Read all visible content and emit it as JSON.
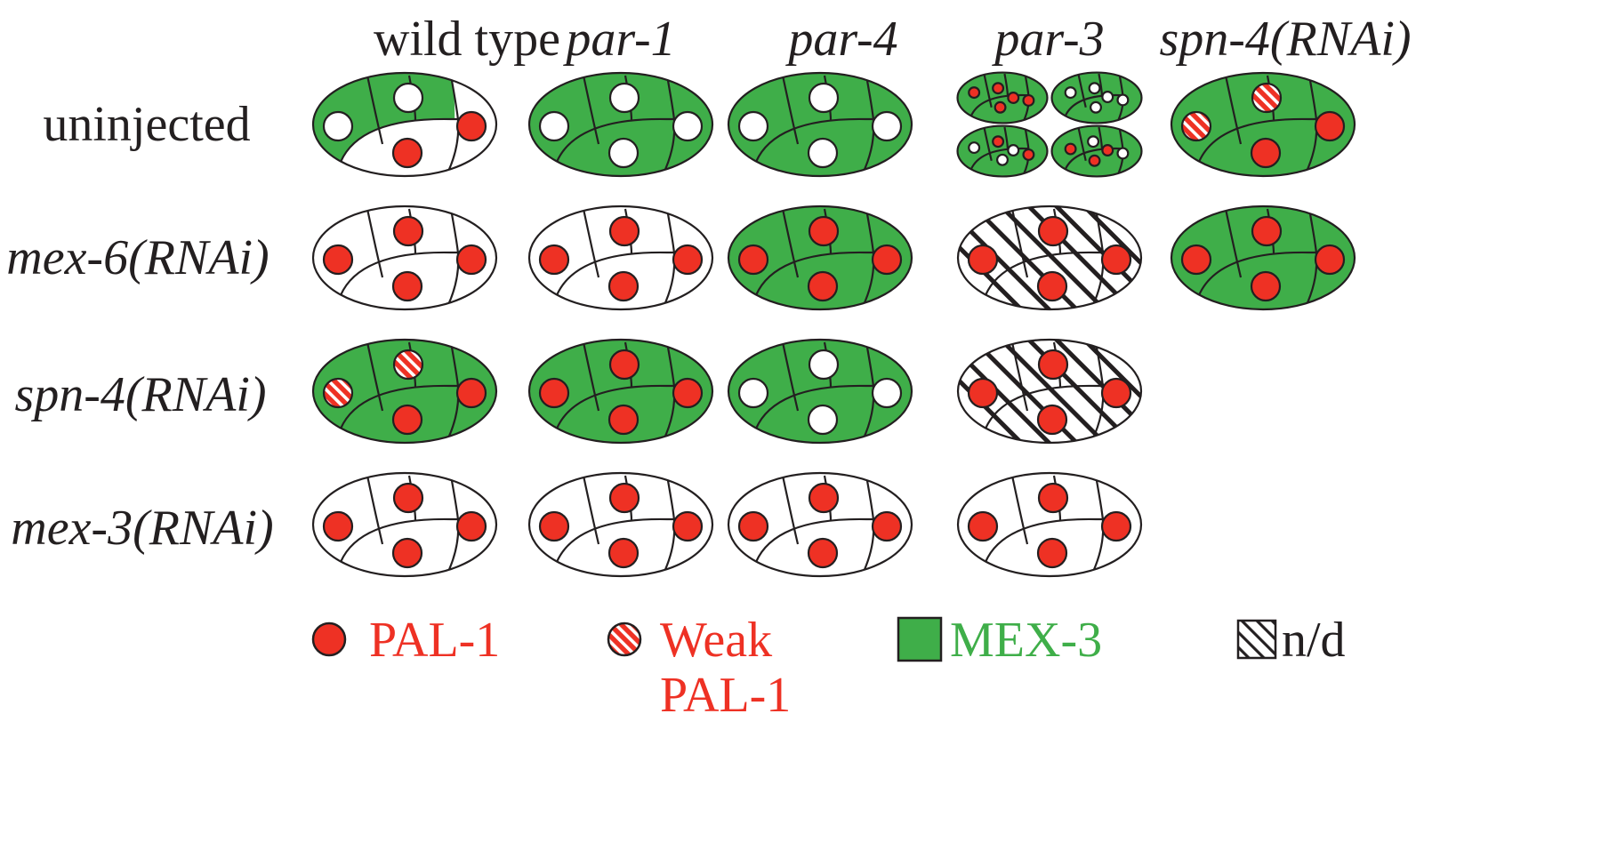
{
  "columns": [
    "wild type",
    "par-1",
    "par-4",
    "par-3",
    "spn-4(RNAi)"
  ],
  "rows": [
    "uninjected",
    "mex-6(RNAi)",
    "spn-4(RNAi)",
    "mex-3(RNAi)"
  ],
  "colors": {
    "mex3_green": "#3fae49",
    "pal1_red": "#ee3124",
    "outline": "#231f20",
    "white": "#ffffff"
  },
  "legend": {
    "pal1": "PAL-1",
    "weak_line1": "Weak",
    "weak_line2": "PAL-1",
    "mex3": "MEX-3",
    "nd": "n/d"
  },
  "cells": [
    [
      {
        "type": "embryo",
        "fill": "partial",
        "dots": [
          "white",
          "white",
          "red",
          "red"
        ]
      },
      {
        "type": "embryo",
        "fill": "green",
        "dots": [
          "white",
          "white",
          "white",
          "white"
        ]
      },
      {
        "type": "embryo",
        "fill": "green",
        "dots": [
          "white",
          "white",
          "white",
          "white"
        ]
      },
      {
        "type": "quad"
      },
      {
        "type": "embryo",
        "fill": "green",
        "dots": [
          "weak",
          "weak",
          "red",
          "red"
        ]
      }
    ],
    [
      {
        "type": "embryo",
        "fill": "white",
        "dots": [
          "red",
          "red",
          "red",
          "red"
        ]
      },
      {
        "type": "embryo",
        "fill": "white",
        "dots": [
          "red",
          "red",
          "red",
          "red"
        ]
      },
      {
        "type": "embryo",
        "fill": "green",
        "dots": [
          "red",
          "red",
          "red",
          "red"
        ]
      },
      {
        "type": "nd"
      },
      {
        "type": "embryo",
        "fill": "green",
        "dots": [
          "red",
          "red",
          "red",
          "red"
        ]
      }
    ],
    [
      {
        "type": "embryo",
        "fill": "green",
        "dots": [
          "weak",
          "weak",
          "red",
          "red"
        ]
      },
      {
        "type": "embryo",
        "fill": "green",
        "dots": [
          "red",
          "red",
          "red",
          "red"
        ]
      },
      {
        "type": "embryo",
        "fill": "green",
        "dots": [
          "white",
          "white",
          "white",
          "white"
        ]
      },
      {
        "type": "nd"
      },
      {
        "type": "empty"
      }
    ],
    [
      {
        "type": "embryo",
        "fill": "white",
        "dots": [
          "red",
          "red",
          "red",
          "red"
        ]
      },
      {
        "type": "embryo",
        "fill": "white",
        "dots": [
          "red",
          "red",
          "red",
          "red"
        ]
      },
      {
        "type": "embryo",
        "fill": "white",
        "dots": [
          "red",
          "red",
          "red",
          "red"
        ]
      },
      {
        "type": "embryo",
        "fill": "white",
        "dots": [
          "red",
          "red",
          "red",
          "red"
        ]
      },
      {
        "type": "empty"
      }
    ]
  ]
}
